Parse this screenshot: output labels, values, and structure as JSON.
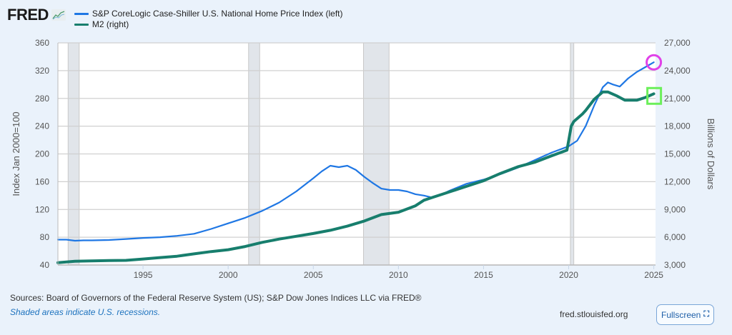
{
  "header": {
    "logo_text": "FRED",
    "logo_icon": "line-chart-icon"
  },
  "legend": [
    {
      "label": "S&P CoreLogic Case-Shiller U.S. National Home Price Index (left)",
      "color": "#1f77e4"
    },
    {
      "label": "M2 (right)",
      "color": "#177e6d"
    }
  ],
  "footer": {
    "sources": "Sources: Board of Governors of the Federal Reserve System (US); S&P Dow Jones Indices LLC via FRED®",
    "note": "Shaded areas indicate U.S. recessions.",
    "url": "fred.stlouisfed.org",
    "fullscreen_label": "Fullscreen",
    "fullscreen_icon": "expand-icon"
  },
  "chart_data": {
    "type": "line",
    "title": "",
    "xlabel": "",
    "ylabel": "Index Jan 2000=100",
    "y2label": "Billions of Dollars",
    "xlim": [
      1990.0,
      2025.1
    ],
    "ylim": [
      40,
      360
    ],
    "y2lim": [
      3000,
      27000
    ],
    "x_ticks": [
      1995,
      2000,
      2005,
      2010,
      2015,
      2020,
      2025
    ],
    "y_ticks": [
      40,
      80,
      120,
      160,
      200,
      240,
      280,
      320,
      360
    ],
    "y2_ticks": [
      "3,000",
      "6,000",
      "9,000",
      "12,000",
      "15,000",
      "18,000",
      "21,000",
      "24,000",
      "27,000"
    ],
    "grid": true,
    "recessions": [
      [
        1990.6,
        1991.25
      ],
      [
        2001.2,
        2001.85
      ],
      [
        2007.95,
        2009.45
      ],
      [
        2020.1,
        2020.3
      ]
    ],
    "series": [
      {
        "name": "S&P CoreLogic Case-Shiller U.S. National Home Price Index (left)",
        "axis": "left",
        "color": "#1f77e4",
        "x": [
          1990,
          1990.5,
          1991,
          1991.5,
          1992,
          1993,
          1994,
          1995,
          1996,
          1997,
          1998,
          1999,
          2000,
          2001,
          2002,
          2003,
          2004,
          2005,
          2005.5,
          2006,
          2006.5,
          2007,
          2007.5,
          2008,
          2008.5,
          2009,
          2009.5,
          2010,
          2010.5,
          2011,
          2011.5,
          2012,
          2012.5,
          2013,
          2013.5,
          2014,
          2015,
          2016,
          2017,
          2018,
          2019,
          2020,
          2020.5,
          2021,
          2021.5,
          2022,
          2022.3,
          2022.6,
          2023,
          2023.5,
          2024,
          2024.5,
          2025
        ],
        "values": [
          76.5,
          76.5,
          75,
          75.5,
          75.5,
          76,
          77.5,
          79,
          80,
          82,
          85,
          92,
          100,
          108,
          118,
          130,
          146,
          165,
          175,
          183,
          181,
          183,
          177,
          167,
          158,
          150,
          148,
          148,
          146,
          142,
          140,
          137,
          141,
          147,
          152,
          157,
          163,
          171,
          180,
          191,
          202,
          211,
          219,
          240,
          270,
          296,
          303,
          300,
          297,
          309,
          318,
          325,
          332
        ]
      },
      {
        "name": "M2 (right)",
        "axis": "right",
        "color": "#177e6d",
        "x": [
          1990,
          1991,
          1992,
          1993,
          1994,
          1995,
          1996,
          1997,
          1998,
          1999,
          2000,
          2001,
          2002,
          2003,
          2004,
          2005,
          2006,
          2007,
          2008,
          2008.5,
          2009,
          2010,
          2011,
          2011.5,
          2012,
          2013,
          2014,
          2015,
          2016,
          2017,
          2018,
          2019,
          2019.9,
          2020.15,
          2020.3,
          2020.8,
          2021,
          2021.5,
          2022,
          2022.3,
          2022.8,
          2023.3,
          2024,
          2024.5,
          2025
        ],
        "values": [
          3250,
          3400,
          3450,
          3480,
          3500,
          3650,
          3800,
          3950,
          4200,
          4450,
          4650,
          5000,
          5450,
          5800,
          6100,
          6400,
          6750,
          7200,
          7750,
          8100,
          8450,
          8700,
          9400,
          10000,
          10300,
          10900,
          11500,
          12100,
          12900,
          13600,
          14100,
          14800,
          15400,
          18000,
          18500,
          19300,
          19700,
          20900,
          21700,
          21700,
          21300,
          20800,
          20800,
          21100,
          21500
        ]
      }
    ],
    "annotations": [
      {
        "type": "circle",
        "color": "#e040e8",
        "series": "S&P CoreLogic Case-Shiller U.S. National Home Price Index (left)",
        "x": 2025
      },
      {
        "type": "square",
        "color": "#6bef5a",
        "series": "M2 (right)",
        "x": 2025
      }
    ]
  }
}
